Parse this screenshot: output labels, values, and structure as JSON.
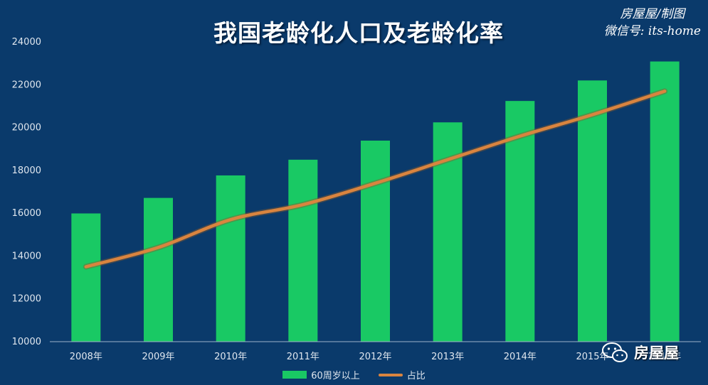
{
  "chart_data": {
    "type": "bar",
    "title": "我国老龄化人口及老龄化率",
    "categories": [
      "2008年",
      "2009年",
      "2010年",
      "2011年",
      "2012年",
      "2013年",
      "2014年",
      "2015年",
      "2016年"
    ],
    "series": [
      {
        "name": "60周岁以上",
        "type": "bar",
        "values": [
          15989,
          16714,
          17765,
          18499,
          19390,
          20243,
          21242,
          22200,
          23086
        ]
      },
      {
        "name": "占比",
        "type": "line",
        "values": [
          13500,
          14400,
          15700,
          16400,
          17400,
          18500,
          19600,
          20600,
          21700
        ]
      }
    ],
    "ylim": [
      10000,
      24000
    ],
    "yticks": [
      10000,
      12000,
      14000,
      16000,
      18000,
      20000,
      22000,
      24000
    ],
    "grid": false,
    "legend": "bottom",
    "colors": {
      "bar": "#19c964",
      "line": "#d9843f",
      "background": "#0a3a6b"
    }
  },
  "brand": {
    "line1": "房屋屋/制图",
    "line2": "微信号: its-home"
  },
  "watermark": {
    "text": "房屋屋",
    "icon": "wechat-icon"
  }
}
